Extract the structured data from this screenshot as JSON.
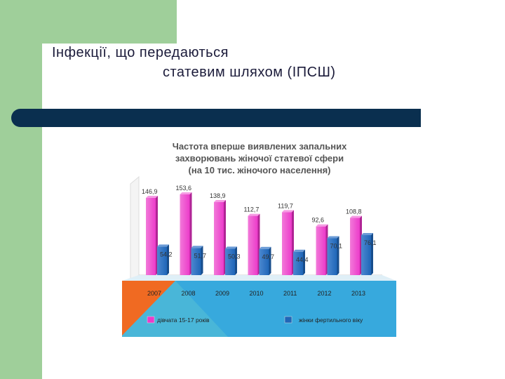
{
  "slide": {
    "title_line_1": "Інфекції, що передаються",
    "title_line_2": "статевим шляхом (ІПСШ)"
  },
  "colors": {
    "side_green": "#9fcf9a",
    "divider": "#0a2f4f",
    "floor_orange": "#f06a22",
    "floor_teal": "#49b6d8",
    "floor_blue": "#37a9dd",
    "series_pink": "#ec3aca",
    "series_blue": "#1f66b8"
  },
  "chart_data": {
    "type": "bar",
    "title_lines": [
      "Частота вперше виявлених запальних",
      "захворювань жіночої статевої сфери",
      "(на 10 тис. жіночого населення)"
    ],
    "categories": [
      "2007",
      "2008",
      "2009",
      "2010",
      "2011",
      "2012",
      "2013"
    ],
    "series": [
      {
        "name": "дівчата 15-17 років",
        "color": "#ec3aca",
        "values": [
          146.9,
          153.6,
          138.9,
          112.7,
          119.7,
          92.6,
          108.8
        ],
        "labels": [
          "146,9",
          "153,6",
          "138,9",
          "112,7",
          "119,7",
          "92,6",
          "108,8"
        ]
      },
      {
        "name": "жінки фертильного віку",
        "color": "#1f66b8",
        "values": [
          54.2,
          51.7,
          50.3,
          49.7,
          44.4,
          70.1,
          76.1
        ],
        "labels": [
          "54,2",
          "51,7",
          "50,3",
          "49,7",
          "44,4",
          "70,1",
          "76,1"
        ]
      }
    ],
    "ylim": [
      0,
      160
    ],
    "grid": false,
    "legend_position": "bottom"
  }
}
